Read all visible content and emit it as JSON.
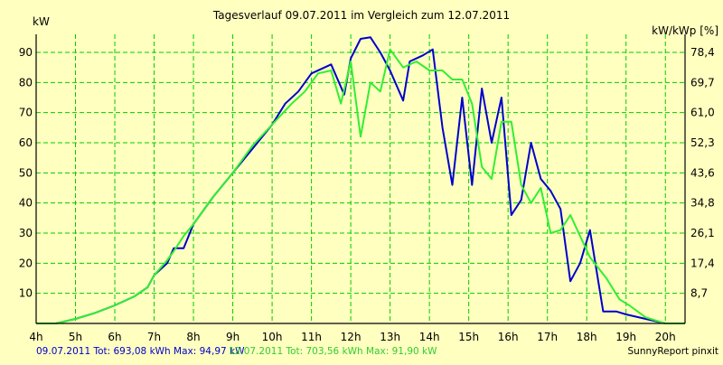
{
  "chart_data": {
    "type": "line",
    "title": "Tagesverlauf 09.07.2011 im Vergleich zum 12.07.2011",
    "ylabel_left": "kW",
    "ylabel_right": "kW/kWp [%]",
    "x_ticks": [
      "4h",
      "5h",
      "6h",
      "7h",
      "8h",
      "9h",
      "10h",
      "11h",
      "12h",
      "13h",
      "14h",
      "15h",
      "16h",
      "17h",
      "18h",
      "19h",
      "20h"
    ],
    "xlim": [
      4,
      20.5
    ],
    "ylim": [
      0,
      96
    ],
    "y_ticks_left": [
      "10",
      "20",
      "30",
      "40",
      "50",
      "60",
      "70",
      "80",
      "90"
    ],
    "y_ticks_right": [
      "8,7",
      "17,4",
      "26,1",
      "34,8",
      "43,6",
      "52,3",
      "61,0",
      "69,7",
      "78,4"
    ],
    "grid": true,
    "legend_text": {
      "series1": "09.07.2011 Tot: 693,08 kWh Max: 94,97 kW",
      "series2": "12.07.2011 Tot: 703,56 kWh Max: 91,90 kW"
    },
    "credit": "SunnyReport pinxit",
    "colors": {
      "background": "#FFFFC0",
      "grid": "#00CC00",
      "axis": "#000000",
      "series1": "#0000CC",
      "series2": "#33EE33"
    },
    "series": [
      {
        "points": [
          [
            4.0,
            0
          ],
          [
            4.5,
            0
          ],
          [
            5.0,
            1.5
          ],
          [
            5.5,
            3.5
          ],
          [
            6.0,
            6
          ],
          [
            6.5,
            9
          ],
          [
            6.833,
            12
          ],
          [
            7.0,
            16
          ],
          [
            7.333,
            20
          ],
          [
            7.5,
            25
          ],
          [
            7.75,
            25
          ],
          [
            8.0,
            33
          ],
          [
            8.5,
            42
          ],
          [
            9.0,
            50
          ],
          [
            9.5,
            58
          ],
          [
            10.0,
            66
          ],
          [
            10.333,
            73
          ],
          [
            10.667,
            77
          ],
          [
            11.0,
            83
          ],
          [
            11.5,
            86
          ],
          [
            11.833,
            76
          ],
          [
            12.0,
            88
          ],
          [
            12.25,
            94.5
          ],
          [
            12.5,
            95
          ],
          [
            12.75,
            90
          ],
          [
            13.0,
            84
          ],
          [
            13.333,
            74
          ],
          [
            13.5,
            87
          ],
          [
            13.833,
            89
          ],
          [
            14.083,
            91
          ],
          [
            14.333,
            65
          ],
          [
            14.583,
            46
          ],
          [
            14.833,
            75
          ],
          [
            15.083,
            46
          ],
          [
            15.333,
            78
          ],
          [
            15.583,
            60
          ],
          [
            15.833,
            75
          ],
          [
            16.083,
            36
          ],
          [
            16.333,
            41
          ],
          [
            16.583,
            60
          ],
          [
            16.833,
            48
          ],
          [
            17.083,
            44
          ],
          [
            17.333,
            38
          ],
          [
            17.583,
            14
          ],
          [
            17.833,
            20
          ],
          [
            18.083,
            31
          ],
          [
            18.417,
            4
          ],
          [
            18.75,
            4
          ],
          [
            19.0,
            3
          ],
          [
            19.5,
            1.5
          ],
          [
            20.0,
            0
          ],
          [
            20.5,
            0
          ]
        ]
      },
      {
        "points": [
          [
            4.0,
            0
          ],
          [
            4.5,
            0
          ],
          [
            5.0,
            1.5
          ],
          [
            5.5,
            3.5
          ],
          [
            6.0,
            6
          ],
          [
            6.5,
            9
          ],
          [
            6.833,
            12
          ],
          [
            7.0,
            16
          ],
          [
            7.333,
            21
          ],
          [
            7.5,
            24
          ],
          [
            7.75,
            29
          ],
          [
            8.0,
            33
          ],
          [
            8.5,
            42
          ],
          [
            9.0,
            50
          ],
          [
            9.5,
            59
          ],
          [
            10.0,
            66
          ],
          [
            10.5,
            73
          ],
          [
            10.833,
            77
          ],
          [
            11.167,
            83
          ],
          [
            11.5,
            84
          ],
          [
            11.75,
            73
          ],
          [
            12.0,
            87
          ],
          [
            12.25,
            62
          ],
          [
            12.5,
            80
          ],
          [
            12.75,
            77
          ],
          [
            13.0,
            91
          ],
          [
            13.333,
            85
          ],
          [
            13.667,
            87
          ],
          [
            14.0,
            84
          ],
          [
            14.333,
            84
          ],
          [
            14.583,
            81
          ],
          [
            14.833,
            81
          ],
          [
            15.083,
            73
          ],
          [
            15.333,
            52
          ],
          [
            15.583,
            48
          ],
          [
            15.833,
            67
          ],
          [
            16.083,
            67
          ],
          [
            16.333,
            46
          ],
          [
            16.583,
            40
          ],
          [
            16.833,
            45
          ],
          [
            17.083,
            30
          ],
          [
            17.333,
            31
          ],
          [
            17.583,
            36
          ],
          [
            17.833,
            29
          ],
          [
            18.083,
            22
          ],
          [
            18.5,
            15
          ],
          [
            18.833,
            8
          ],
          [
            19.083,
            6
          ],
          [
            19.5,
            2
          ],
          [
            20.0,
            0
          ],
          [
            20.5,
            0
          ]
        ]
      }
    ]
  }
}
